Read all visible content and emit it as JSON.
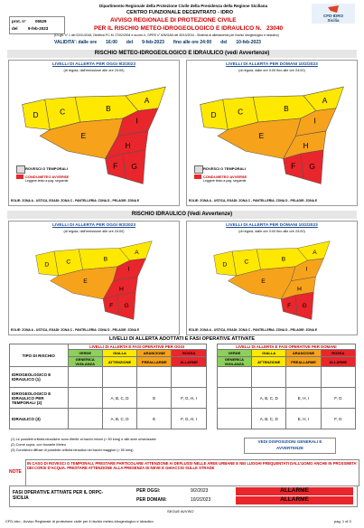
{
  "header": {
    "department": "Dipartimento Regionale della Protezione Civile della Presidenza della Regione Siciliana",
    "center": "CENTRO FUNZIONALE DECENTRATO - IDRO",
    "prot_label": "prot. n°",
    "prot": "05529",
    "del_label": "del",
    "date": "9-feb-2023",
    "title": "AVVISO REGIONALE DI PROTEZIONE CIVILE",
    "subtitle": "PER IL RISCHIO METEO-IDROGEOLOGICO E IDRAULICO N.",
    "number": "23040",
    "legal": "(D.Lgs. n° 1 del 02/01/2018, Direttiva P.C.M. 27/02/2004 e ss.mm.ii., DPRS n° 626/GAB del 30/10/2014 - Sistema di allertamento per rischio idrogeologico e idraulico)",
    "logo": "CFD-IDRO",
    "logo_region": "Sicilia",
    "validity": [
      "VALIDITA': dalle ore",
      "16:00",
      "del",
      "9-feb-2023",
      "fino alle ore 24:00",
      "del",
      "10-feb-2023"
    ]
  },
  "sections": [
    {
      "title": "RISCHIO METEO-IDROGEOLOGICO E IDRAULICO (vedi Avvertenze)",
      "panels": [
        {
          "title": "LIVELLI DI ALLERTA PER OGGI 9/2/2023",
          "subtitle": "(di regola, dall'emissione alle ore 24:00)",
          "zones": [
            {
              "label": "A",
              "color": "#ffe800"
            },
            {
              "label": "B",
              "color": "#ffe800"
            },
            {
              "label": "C",
              "color": "#ffe800"
            },
            {
              "label": "D",
              "color": "#ffe800"
            },
            {
              "label": "E",
              "color": "#f7a21b"
            },
            {
              "label": "F",
              "color": "#e8262b"
            },
            {
              "label": "G",
              "color": "#e8262b"
            },
            {
              "label": "H",
              "color": "#e8262b"
            },
            {
              "label": "I",
              "color": "#e8262b"
            }
          ],
          "legend": [
            "ROVESCI O TEMPORALI",
            "CONDI-METEO AVVERSE",
            "Leggere testo a pag. seguente"
          ],
          "note": "EOLIE: ZONA A - USTICA, EGADI: ZONA C - PANTELLERIA: ZONA D - PELAGIE: ZONA E"
        },
        {
          "title": "LIVELLI DI ALLERTA PER DOMANI 10/2/2023",
          "subtitle": "(di regola, dalle ore 0:00 fino alle ore 24:00)",
          "zones": [
            {
              "label": "A",
              "color": "#ffe800"
            },
            {
              "label": "B",
              "color": "#ffe800"
            },
            {
              "label": "C",
              "color": "#ffe800"
            },
            {
              "label": "D",
              "color": "#ffe800"
            },
            {
              "label": "E",
              "color": "#f7a21b"
            },
            {
              "label": "F",
              "color": "#e8262b"
            },
            {
              "label": "G",
              "color": "#e8262b"
            },
            {
              "label": "H",
              "color": "#f7a21b"
            },
            {
              "label": "I",
              "color": "#f7a21b"
            }
          ],
          "legend": [
            "ROVESCI O TEMPORALI",
            "CONDI-METEO AVVERSE",
            "Leggere testo a pag. seguente"
          ],
          "note": "EOLIE: ZONA A - USTICA, EGADI: ZONA C - PANTELLERIA: ZONA D - PELAGIE: ZONA E"
        }
      ]
    },
    {
      "title": "RISCHIO IDRAULICO (Vedi Avvertenze)",
      "panels": [
        {
          "title": "LIVELLI DI ALLERTA PER OGGI 9/2/2023",
          "subtitle": "(di regola, dall'emissione alle ore 24:00)",
          "zones": [
            {
              "label": "A",
              "color": "#ffe800"
            },
            {
              "label": "B",
              "color": "#ffe800"
            },
            {
              "label": "C",
              "color": "#ffe800"
            },
            {
              "label": "D",
              "color": "#ffe800"
            },
            {
              "label": "E",
              "color": "#f7a21b"
            },
            {
              "label": "F",
              "color": "#e8262b"
            },
            {
              "label": "G",
              "color": "#e8262b"
            },
            {
              "label": "H",
              "color": "#e8262b"
            },
            {
              "label": "I",
              "color": "#e8262b"
            }
          ],
          "note": "EOLIE: ZONA A - USTICA, EGADI: ZONA C - PANTELLERIA: ZONA D - PELAGIE: ZONA E"
        },
        {
          "title": "LIVELLI DI ALLERTA PER DOMANI 10/2/2023",
          "subtitle": "(di regola, dalle ore 0:00 fino alle ore 24:00)",
          "zones": [
            {
              "label": "A",
              "color": "#ffe800"
            },
            {
              "label": "B",
              "color": "#ffe800"
            },
            {
              "label": "C",
              "color": "#ffe800"
            },
            {
              "label": "D",
              "color": "#ffe800"
            },
            {
              "label": "E",
              "color": "#f7a21b"
            },
            {
              "label": "F",
              "color": "#e8262b"
            },
            {
              "label": "G",
              "color": "#e8262b"
            },
            {
              "label": "H",
              "color": "#f7a21b"
            },
            {
              "label": "I",
              "color": "#f7a21b"
            }
          ],
          "note": "EOLIE: ZONA A - USTICA, EGADI: ZONA C - PANTELLERIA: ZONA D - PELAGIE: ZONA E"
        }
      ]
    }
  ],
  "table": {
    "title": "LIVELLI DI ALLERTA ADOTTATI E FASI OPERATIVE ATTIVATE",
    "type_header": "TIPO DI RISCHIO",
    "today_header": "LIVELLI DI ALLERTA E FASI OPERATIVE PER OGGI",
    "tomorrow_header": "LIVELLI DI ALLERTA E FASI OPERATIVE PER DOMANI",
    "levels": [
      {
        "level": "VERDE",
        "phase": "GENERICA VIGILANZA",
        "color": "#8ccf5a"
      },
      {
        "level": "GIALLA",
        "phase": "ATTENZIONE",
        "color": "#ffe800"
      },
      {
        "level": "ARANCIONE",
        "phase": "PREALLARME",
        "color": "#f7a21b"
      },
      {
        "level": "ROSSA",
        "phase": "ALLARME",
        "color": "#e8262b"
      }
    ],
    "rows": [
      {
        "label": "IDROGEOLOGICO E IDRAULICO (1)",
        "today": [
          null,
          null,
          null,
          null
        ],
        "tomorrow": [
          null,
          null,
          null,
          null
        ]
      },
      {
        "label": "IDROGEOLOGICO E IDRAULICO PER TEMPORALI (2)",
        "today": [
          null,
          "A, B, C, D",
          "E",
          "F, G, H, I"
        ],
        "tomorrow": [
          null,
          "A, B, C, D",
          "E, H, I",
          "F, G"
        ]
      },
      {
        "label": "IDRAULICO (3)",
        "today": [
          null,
          "A, B, C, D",
          "E",
          "F, G, H, I"
        ],
        "tomorrow": [
          null,
          "A, B, C, D",
          "E, H, I",
          "F, G"
        ]
      }
    ],
    "footnotes": [
      "(1) Le possibili criticità idrauliche sono riferite ai bacini minori (< 50 kmq) e alle aree urbanizzate",
      "(2) Come sopra, con forzante Meteo",
      "(3) Condizioni diffuse di possibile criticità idraulica nei bacini maggiori (> 50 kmq)"
    ],
    "see": "VEDI DISPOSIZIONI GENERALI E AVVERTENZE"
  },
  "note": {
    "label": "NOTE",
    "text": "IN CASO DI ROVESCI O TEMPORALI, PRESTARE PARTICOLARE ATTENZIONE AI DEFLUSSI NELLE AREE URBANE E NEI LUOGHI FREQUENTATI DALL'UOMO ANCHE IN PROSSIMITA' DEI CORSI D'ACQUA. PRESTARE ATTENZIONE ALLA PRESENZA DI NEVE E GHIACCIO SULLE STRADE"
  },
  "phases": {
    "label": "FASI OPERATIVE ATTIVATE PER IL DRPC-SICILIA",
    "today_label": "PER OGGI:",
    "today_date": "9/2/2023",
    "today_phase": "ALLARME",
    "tomorrow_label": "PER DOMANI:",
    "tomorrow_date": "10/2/2023",
    "tomorrow_phase": "ALLARME"
  },
  "continues": "SEGUE AVVISO",
  "footer": {
    "left": "CFD-Idro - Avviso Regionale di protezione civile per il rischio meteo-idrogeologico e idraulico",
    "right": "pag. 1 di 3"
  }
}
